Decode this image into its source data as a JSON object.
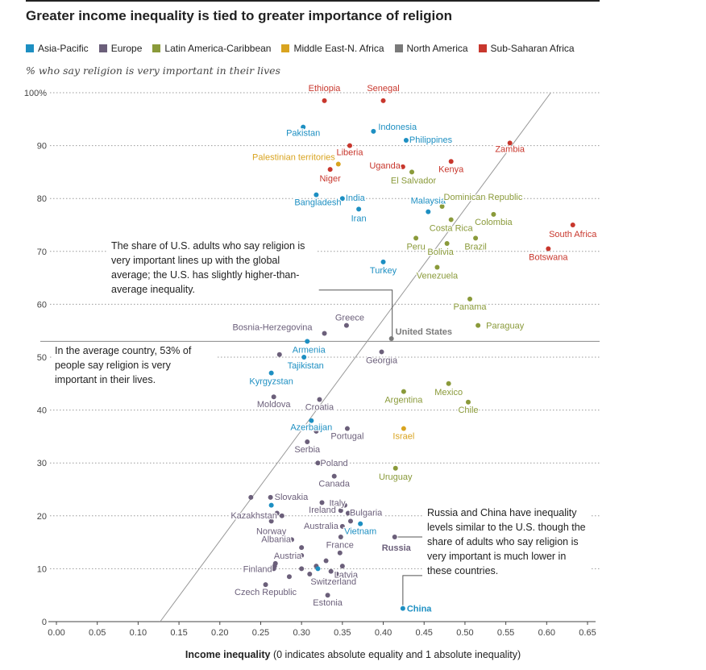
{
  "title": "Greater income inequality is tied to greater importance of religion",
  "subtitle": "% who say religion is very important in their lives",
  "legend": [
    {
      "label": "Asia-Pacific",
      "color": "#1d8fc2",
      "key": "AP"
    },
    {
      "label": "Europe",
      "color": "#6b5f7a",
      "key": "EU"
    },
    {
      "label": "Latin America-Caribbean",
      "color": "#8a9a3a",
      "key": "LA"
    },
    {
      "label": "Middle East-N. Africa",
      "color": "#d9a420",
      "key": "ME"
    },
    {
      "label": "North America",
      "color": "#7a7a7a",
      "key": "NA"
    },
    {
      "label": "Sub-Saharan Africa",
      "color": "#c8372d",
      "key": "SA"
    }
  ],
  "annotations": {
    "us_note": "The share of U.S. adults who say religion is very important lines up with the global average; the U.S. has slightly higher-than-average inequality.",
    "avg_note": "In the average country, 53% of people say religion is very important in their lives.",
    "russia_note": "Russia and China have inequality levels similar to the U.S. though the share of adults who say religion is very important is much lower in these countries."
  },
  "xlabel_bold": "Income inequality",
  "xlabel_rest": " (0 indicates absolute equality and 1 absolute inequality)",
  "chart_data": {
    "type": "scatter",
    "title": "Greater income inequality is tied to greater importance of religion",
    "xlabel": "Income inequality (0 indicates absolute equality and 1 absolute inequality)",
    "ylabel": "% who say religion is very important in their lives",
    "xlim": [
      0,
      0.65
    ],
    "ylim": [
      0,
      100
    ],
    "xticks": [
      {
        "v": 0,
        "label": "0.00"
      },
      {
        "v": 0.05,
        "label": "0.05"
      },
      {
        "v": 0.1,
        "label": "0.10"
      },
      {
        "v": 0.15,
        "label": "0.15"
      },
      {
        "v": 0.2,
        "label": "0.20"
      },
      {
        "v": 0.25,
        "label": "0.25"
      },
      {
        "v": 0.3,
        "label": "0.30"
      },
      {
        "v": 0.35,
        "label": "0.35"
      },
      {
        "v": 0.4,
        "label": "0.40"
      },
      {
        "v": 0.45,
        "label": "0.45"
      },
      {
        "v": 0.5,
        "label": "0.50"
      },
      {
        "v": 0.55,
        "label": "0.55"
      },
      {
        "v": 0.6,
        "label": "0.60"
      },
      {
        "v": 0.65,
        "label": "0.65"
      }
    ],
    "yticks": [
      {
        "v": 0,
        "label": "0"
      },
      {
        "v": 10,
        "label": "10"
      },
      {
        "v": 20,
        "label": "20"
      },
      {
        "v": 30,
        "label": "30"
      },
      {
        "v": 40,
        "label": "40"
      },
      {
        "v": 50,
        "label": "50"
      },
      {
        "v": 60,
        "label": "60"
      },
      {
        "v": 70,
        "label": "70"
      },
      {
        "v": 80,
        "label": "80"
      },
      {
        "v": 90,
        "label": "90"
      },
      {
        "v": 100,
        "label": "100%"
      }
    ],
    "average_line": 53,
    "trend_line": {
      "x1": 0.127,
      "y1": 0,
      "x2": 0.605,
      "y2": 100
    },
    "points": [
      {
        "x": 0.328,
        "y": 98.5,
        "r": "SA",
        "label": "Ethiopia",
        "anchor": "middle",
        "lx": 0,
        "ly": -12
      },
      {
        "x": 0.4,
        "y": 98.5,
        "r": "SA",
        "label": "Senegal",
        "anchor": "middle",
        "lx": 0,
        "ly": -12
      },
      {
        "x": 0.302,
        "y": 93.5,
        "r": "AP",
        "label": "Pakistan",
        "anchor": "middle",
        "lx": 0,
        "ly": 11
      },
      {
        "x": 0.388,
        "y": 92.7,
        "r": "AP",
        "label": "Indonesia",
        "anchor": "start",
        "lx": 6,
        "ly": -2
      },
      {
        "x": 0.428,
        "y": 91.0,
        "r": "AP",
        "label": "Philippines",
        "anchor": "start",
        "lx": 4,
        "ly": 3
      },
      {
        "x": 0.555,
        "y": 90.5,
        "r": "SA",
        "label": "Zambia",
        "anchor": "middle",
        "lx": 0,
        "ly": 11
      },
      {
        "x": 0.359,
        "y": 90.0,
        "r": "SA",
        "label": "Liberia",
        "anchor": "middle",
        "lx": 0,
        "ly": 12
      },
      {
        "x": 0.345,
        "y": 86.5,
        "r": "ME",
        "label": "Palestinian territories",
        "anchor": "end",
        "lx": -4,
        "ly": -5
      },
      {
        "x": 0.335,
        "y": 85.5,
        "r": "SA",
        "label": "Niger",
        "anchor": "middle",
        "lx": 0,
        "ly": 15
      },
      {
        "x": 0.424,
        "y": 86.0,
        "r": "SA",
        "label": "Uganda",
        "anchor": "end",
        "lx": -3,
        "ly": 2
      },
      {
        "x": 0.435,
        "y": 85.0,
        "r": "LA",
        "label": "El Salvador",
        "anchor": "middle",
        "lx": 2,
        "ly": 14
      },
      {
        "x": 0.483,
        "y": 87.0,
        "r": "SA",
        "label": "Kenya",
        "anchor": "middle",
        "lx": 0,
        "ly": 13
      },
      {
        "x": 0.318,
        "y": 80.7,
        "r": "AP",
        "label": "Bangladesh",
        "anchor": "middle",
        "lx": 2,
        "ly": 13
      },
      {
        "x": 0.35,
        "y": 80.0,
        "r": "AP",
        "label": "India",
        "anchor": "start",
        "lx": 4,
        "ly": 3
      },
      {
        "x": 0.37,
        "y": 78.0,
        "r": "AP",
        "label": "Iran",
        "anchor": "middle",
        "lx": 0,
        "ly": 15
      },
      {
        "x": 0.455,
        "y": 77.5,
        "r": "AP",
        "label": "Malaysia",
        "anchor": "middle",
        "lx": 0,
        "ly": -10
      },
      {
        "x": 0.472,
        "y": 78.5,
        "r": "LA",
        "label": "Dominican Republic",
        "anchor": "start",
        "lx": 2,
        "ly": -8
      },
      {
        "x": 0.483,
        "y": 76.0,
        "r": "LA",
        "label": "Costa Rica",
        "anchor": "middle",
        "lx": 0,
        "ly": 14
      },
      {
        "x": 0.535,
        "y": 77.0,
        "r": "LA",
        "label": "Colombia",
        "anchor": "middle",
        "lx": 0,
        "ly": 13
      },
      {
        "x": 0.632,
        "y": 75.0,
        "r": "SA",
        "label": "South Africa",
        "anchor": "middle",
        "lx": 0,
        "ly": 15
      },
      {
        "x": 0.44,
        "y": 72.5,
        "r": "LA",
        "label": "Peru",
        "anchor": "middle",
        "lx": 0,
        "ly": 14
      },
      {
        "x": 0.513,
        "y": 72.5,
        "r": "LA",
        "label": "Brazil",
        "anchor": "middle",
        "lx": 0,
        "ly": 14
      },
      {
        "x": 0.478,
        "y": 71.5,
        "r": "LA",
        "label": "Bolivia",
        "anchor": "middle",
        "lx": -8,
        "ly": 14
      },
      {
        "x": 0.602,
        "y": 70.5,
        "r": "SA",
        "label": "Botswana",
        "anchor": "middle",
        "lx": 0,
        "ly": 14
      },
      {
        "x": 0.4,
        "y": 68.0,
        "r": "AP",
        "label": "Turkey",
        "anchor": "middle",
        "lx": 0,
        "ly": 14
      },
      {
        "x": 0.466,
        "y": 67.0,
        "r": "LA",
        "label": "Venezuela",
        "anchor": "middle",
        "lx": 0,
        "ly": 14
      },
      {
        "x": 0.506,
        "y": 61.0,
        "r": "LA",
        "label": "Panama",
        "anchor": "middle",
        "lx": 0,
        "ly": 13
      },
      {
        "x": 0.516,
        "y": 56.0,
        "r": "LA",
        "label": "Paraguay",
        "anchor": "start",
        "lx": 10,
        "ly": 4
      },
      {
        "x": 0.328,
        "y": 54.5,
        "r": "EU",
        "label": "Bosnia-Herzegovina",
        "anchor": "end",
        "lx": -15,
        "ly": -4
      },
      {
        "x": 0.355,
        "y": 56.0,
        "r": "EU",
        "label": "Greece",
        "anchor": "middle",
        "lx": 4,
        "ly": -6
      },
      {
        "x": 0.41,
        "y": 53.5,
        "r": "NA",
        "label": "United States",
        "anchor": "start",
        "lx": 5,
        "ly": -5,
        "bold": true
      },
      {
        "x": 0.307,
        "y": 53.0,
        "r": "AP",
        "label": "Armenia",
        "anchor": "middle",
        "lx": 2,
        "ly": 14
      },
      {
        "x": 0.273,
        "y": 50.5,
        "r": "EU",
        "label": "",
        "anchor": "middle",
        "lx": 0,
        "ly": 0
      },
      {
        "x": 0.398,
        "y": 51.0,
        "r": "EU",
        "label": "Georgia",
        "anchor": "middle",
        "lx": 0,
        "ly": 14
      },
      {
        "x": 0.303,
        "y": 50.0,
        "r": "AP",
        "label": "Tajikistan",
        "anchor": "middle",
        "lx": 2,
        "ly": 14
      },
      {
        "x": 0.263,
        "y": 47.0,
        "r": "AP",
        "label": "Kyrgyzstan",
        "anchor": "middle",
        "lx": 0,
        "ly": 14
      },
      {
        "x": 0.425,
        "y": 43.5,
        "r": "LA",
        "label": "Argentina",
        "anchor": "middle",
        "lx": 0,
        "ly": 14
      },
      {
        "x": 0.48,
        "y": 45.0,
        "r": "LA",
        "label": "Mexico",
        "anchor": "middle",
        "lx": 0,
        "ly": 14
      },
      {
        "x": 0.266,
        "y": 42.5,
        "r": "EU",
        "label": "Moldova",
        "anchor": "middle",
        "lx": 0,
        "ly": 13
      },
      {
        "x": 0.322,
        "y": 42.0,
        "r": "EU",
        "label": "Croatia",
        "anchor": "middle",
        "lx": 0,
        "ly": 13
      },
      {
        "x": 0.504,
        "y": 41.5,
        "r": "LA",
        "label": "Chile",
        "anchor": "middle",
        "lx": 0,
        "ly": 13
      },
      {
        "x": 0.312,
        "y": 38.0,
        "r": "AP",
        "label": "Azerbaijan",
        "anchor": "middle",
        "lx": 0,
        "ly": 12
      },
      {
        "x": 0.356,
        "y": 36.5,
        "r": "EU",
        "label": "Portugal",
        "anchor": "middle",
        "lx": 0,
        "ly": 13
      },
      {
        "x": 0.425,
        "y": 36.5,
        "r": "ME",
        "label": "Israel",
        "anchor": "middle",
        "lx": 0,
        "ly": 13
      },
      {
        "x": 0.318,
        "y": 36.0,
        "r": "EU",
        "label": "",
        "anchor": "middle",
        "lx": 0,
        "ly": 0
      },
      {
        "x": 0.307,
        "y": 34.0,
        "r": "EU",
        "label": "Serbia",
        "anchor": "middle",
        "lx": 0,
        "ly": 13
      },
      {
        "x": 0.32,
        "y": 30.0,
        "r": "EU",
        "label": "Poland",
        "anchor": "start",
        "lx": 3,
        "ly": 4
      },
      {
        "x": 0.415,
        "y": 29.0,
        "r": "LA",
        "label": "Uruguay",
        "anchor": "middle",
        "lx": 0,
        "ly": 14
      },
      {
        "x": 0.34,
        "y": 27.5,
        "r": "EU",
        "label": "Canada",
        "anchor": "middle",
        "lx": 0,
        "ly": 13
      },
      {
        "x": 0.238,
        "y": 23.5,
        "r": "EU",
        "label": "",
        "anchor": "middle",
        "lx": 0,
        "ly": 0
      },
      {
        "x": 0.262,
        "y": 23.5,
        "r": "EU",
        "label": "Slovakia",
        "anchor": "start",
        "lx": 5,
        "ly": 3
      },
      {
        "x": 0.263,
        "y": 22.0,
        "r": "AP",
        "label": "",
        "anchor": "middle",
        "lx": 0,
        "ly": 0
      },
      {
        "x": 0.27,
        "y": 20.5,
        "r": "EU",
        "label": "",
        "anchor": "middle",
        "lx": 0,
        "ly": 0
      },
      {
        "x": 0.276,
        "y": 20.0,
        "r": "EU",
        "label": "Kazakhstan",
        "anchor": "end",
        "lx": -6,
        "ly": 3
      },
      {
        "x": 0.325,
        "y": 22.5,
        "r": "EU",
        "label": "Italy",
        "anchor": "start",
        "lx": 9,
        "ly": 4
      },
      {
        "x": 0.353,
        "y": 22.0,
        "r": "EU",
        "label": "",
        "anchor": "middle",
        "lx": 0,
        "ly": 0
      },
      {
        "x": 0.348,
        "y": 21.0,
        "r": "EU",
        "label": "Ireland",
        "anchor": "end",
        "lx": -6,
        "ly": 3
      },
      {
        "x": 0.357,
        "y": 20.5,
        "r": "EU",
        "label": "Bulgaria",
        "anchor": "start",
        "lx": 2,
        "ly": 3
      },
      {
        "x": 0.263,
        "y": 19.0,
        "r": "EU",
        "label": "Norway",
        "anchor": "middle",
        "lx": 0,
        "ly": 16
      },
      {
        "x": 0.35,
        "y": 18.0,
        "r": "EU",
        "label": "Australia",
        "anchor": "end",
        "lx": -5,
        "ly": 3
      },
      {
        "x": 0.36,
        "y": 19.0,
        "r": "EU",
        "label": "",
        "anchor": "middle",
        "lx": 0,
        "ly": 0
      },
      {
        "x": 0.372,
        "y": 18.5,
        "r": "AP",
        "label": "Vietnam",
        "anchor": "middle",
        "lx": 0,
        "ly": 13
      },
      {
        "x": 0.414,
        "y": 16.0,
        "r": "EU",
        "label": "Russia",
        "anchor": "middle",
        "lx": 2,
        "ly": 17,
        "bold": true
      },
      {
        "x": 0.348,
        "y": 16.0,
        "r": "EU",
        "label": "",
        "anchor": "middle",
        "lx": 0,
        "ly": 0
      },
      {
        "x": 0.288,
        "y": 15.5,
        "r": "EU",
        "label": "Albania",
        "anchor": "end",
        "lx": -1,
        "ly": 3
      },
      {
        "x": 0.3,
        "y": 14.0,
        "r": "EU",
        "label": "",
        "anchor": "middle",
        "lx": 0,
        "ly": 0
      },
      {
        "x": 0.3,
        "y": 12.5,
        "r": "EU",
        "label": "Austria",
        "anchor": "end",
        "lx": 0,
        "ly": 4
      },
      {
        "x": 0.347,
        "y": 13.0,
        "r": "EU",
        "label": "France",
        "anchor": "middle",
        "lx": 0,
        "ly": -6
      },
      {
        "x": 0.268,
        "y": 11.0,
        "r": "EU",
        "label": "",
        "anchor": "middle",
        "lx": 0,
        "ly": 0
      },
      {
        "x": 0.267,
        "y": 10.5,
        "r": "EU",
        "label": "",
        "anchor": "middle",
        "lx": 0,
        "ly": 0
      },
      {
        "x": 0.266,
        "y": 10.0,
        "r": "EU",
        "label": "Finland",
        "anchor": "end",
        "lx": -2,
        "ly": 4
      },
      {
        "x": 0.33,
        "y": 11.5,
        "r": "EU",
        "label": "",
        "anchor": "middle",
        "lx": 0,
        "ly": 0
      },
      {
        "x": 0.3,
        "y": 10.0,
        "r": "EU",
        "label": "",
        "anchor": "middle",
        "lx": 0,
        "ly": 0
      },
      {
        "x": 0.318,
        "y": 10.5,
        "r": "EU",
        "label": "",
        "anchor": "middle",
        "lx": 0,
        "ly": 0
      },
      {
        "x": 0.32,
        "y": 10.0,
        "r": "AP",
        "label": "",
        "anchor": "middle",
        "lx": 0,
        "ly": 0
      },
      {
        "x": 0.336,
        "y": 9.5,
        "r": "EU",
        "label": "Latvia",
        "anchor": "start",
        "lx": 4,
        "ly": 8
      },
      {
        "x": 0.35,
        "y": 10.5,
        "r": "EU",
        "label": "",
        "anchor": "middle",
        "lx": 0,
        "ly": 0
      },
      {
        "x": 0.285,
        "y": 8.5,
        "r": "EU",
        "label": "",
        "anchor": "middle",
        "lx": 0,
        "ly": 0
      },
      {
        "x": 0.31,
        "y": 9.0,
        "r": "EU",
        "label": "",
        "anchor": "middle",
        "lx": 0,
        "ly": 0
      },
      {
        "x": 0.343,
        "y": 9.0,
        "r": "EU",
        "label": "Switzerland",
        "anchor": "middle",
        "lx": -4,
        "ly": 13
      },
      {
        "x": 0.256,
        "y": 7.0,
        "r": "EU",
        "label": "Czech Republic",
        "anchor": "middle",
        "lx": 0,
        "ly": 13
      },
      {
        "x": 0.332,
        "y": 5.0,
        "r": "EU",
        "label": "Estonia",
        "anchor": "middle",
        "lx": 0,
        "ly": 13
      },
      {
        "x": 0.424,
        "y": 2.5,
        "r": "AP",
        "label": "China",
        "anchor": "start",
        "lx": 5,
        "ly": 4,
        "bold": true
      }
    ]
  }
}
